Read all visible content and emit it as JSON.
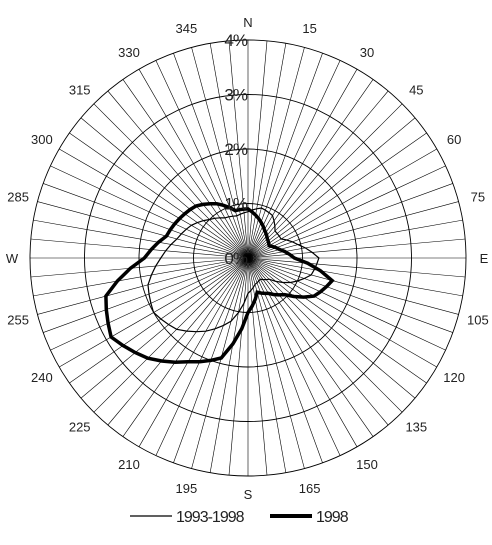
{
  "chart_data": {
    "type": "radar",
    "title": "",
    "radial_unit": "%",
    "radial_ticks": [
      "0%",
      "1%",
      "2%",
      "3%",
      "4%"
    ],
    "radial_range": [
      0,
      4
    ],
    "direction_step_deg": 5,
    "cardinal_labels": [
      {
        "deg": 0,
        "text": "N"
      },
      {
        "deg": 90,
        "text": "E"
      },
      {
        "deg": 180,
        "text": "S"
      },
      {
        "deg": 270,
        "text": "W"
      }
    ],
    "degree_labels": [
      "15",
      "30",
      "45",
      "60",
      "75",
      "105",
      "120",
      "135",
      "150",
      "165",
      "195",
      "210",
      "225",
      "240",
      "255",
      "285",
      "300",
      "315",
      "330",
      "345"
    ],
    "series": [
      {
        "name": "1993-1998",
        "directions": [
          0,
          15,
          30,
          45,
          60,
          75,
          90,
          105,
          120,
          135,
          150,
          165,
          180,
          195,
          210,
          225,
          240,
          255,
          270,
          285,
          300,
          315,
          330,
          345
        ],
        "values": [
          0.85,
          0.95,
          0.9,
          0.7,
          0.7,
          0.95,
          1.3,
          1.2,
          0.9,
          0.55,
          0.45,
          0.5,
          0.65,
          1.2,
          1.55,
          1.85,
          2.0,
          1.9,
          1.6,
          1.35,
          1.2,
          1.0,
          0.85,
          0.8
        ]
      },
      {
        "name": "1998",
        "directions": [
          0,
          15,
          30,
          45,
          60,
          75,
          90,
          105,
          120,
          135,
          150,
          165,
          180,
          195,
          210,
          225,
          240,
          255,
          270,
          285,
          300,
          315,
          330,
          345
        ],
        "values": [
          0.9,
          0.75,
          0.6,
          0.5,
          0.45,
          0.6,
          0.85,
          1.6,
          1.4,
          0.95,
          0.75,
          0.65,
          1.0,
          1.9,
          2.2,
          2.6,
          2.9,
          2.7,
          1.9,
          1.55,
          1.45,
          1.35,
          1.15,
          0.9
        ]
      }
    ],
    "legend": {
      "position": "bottom",
      "entries": [
        "1993-1998",
        "1998"
      ]
    }
  }
}
